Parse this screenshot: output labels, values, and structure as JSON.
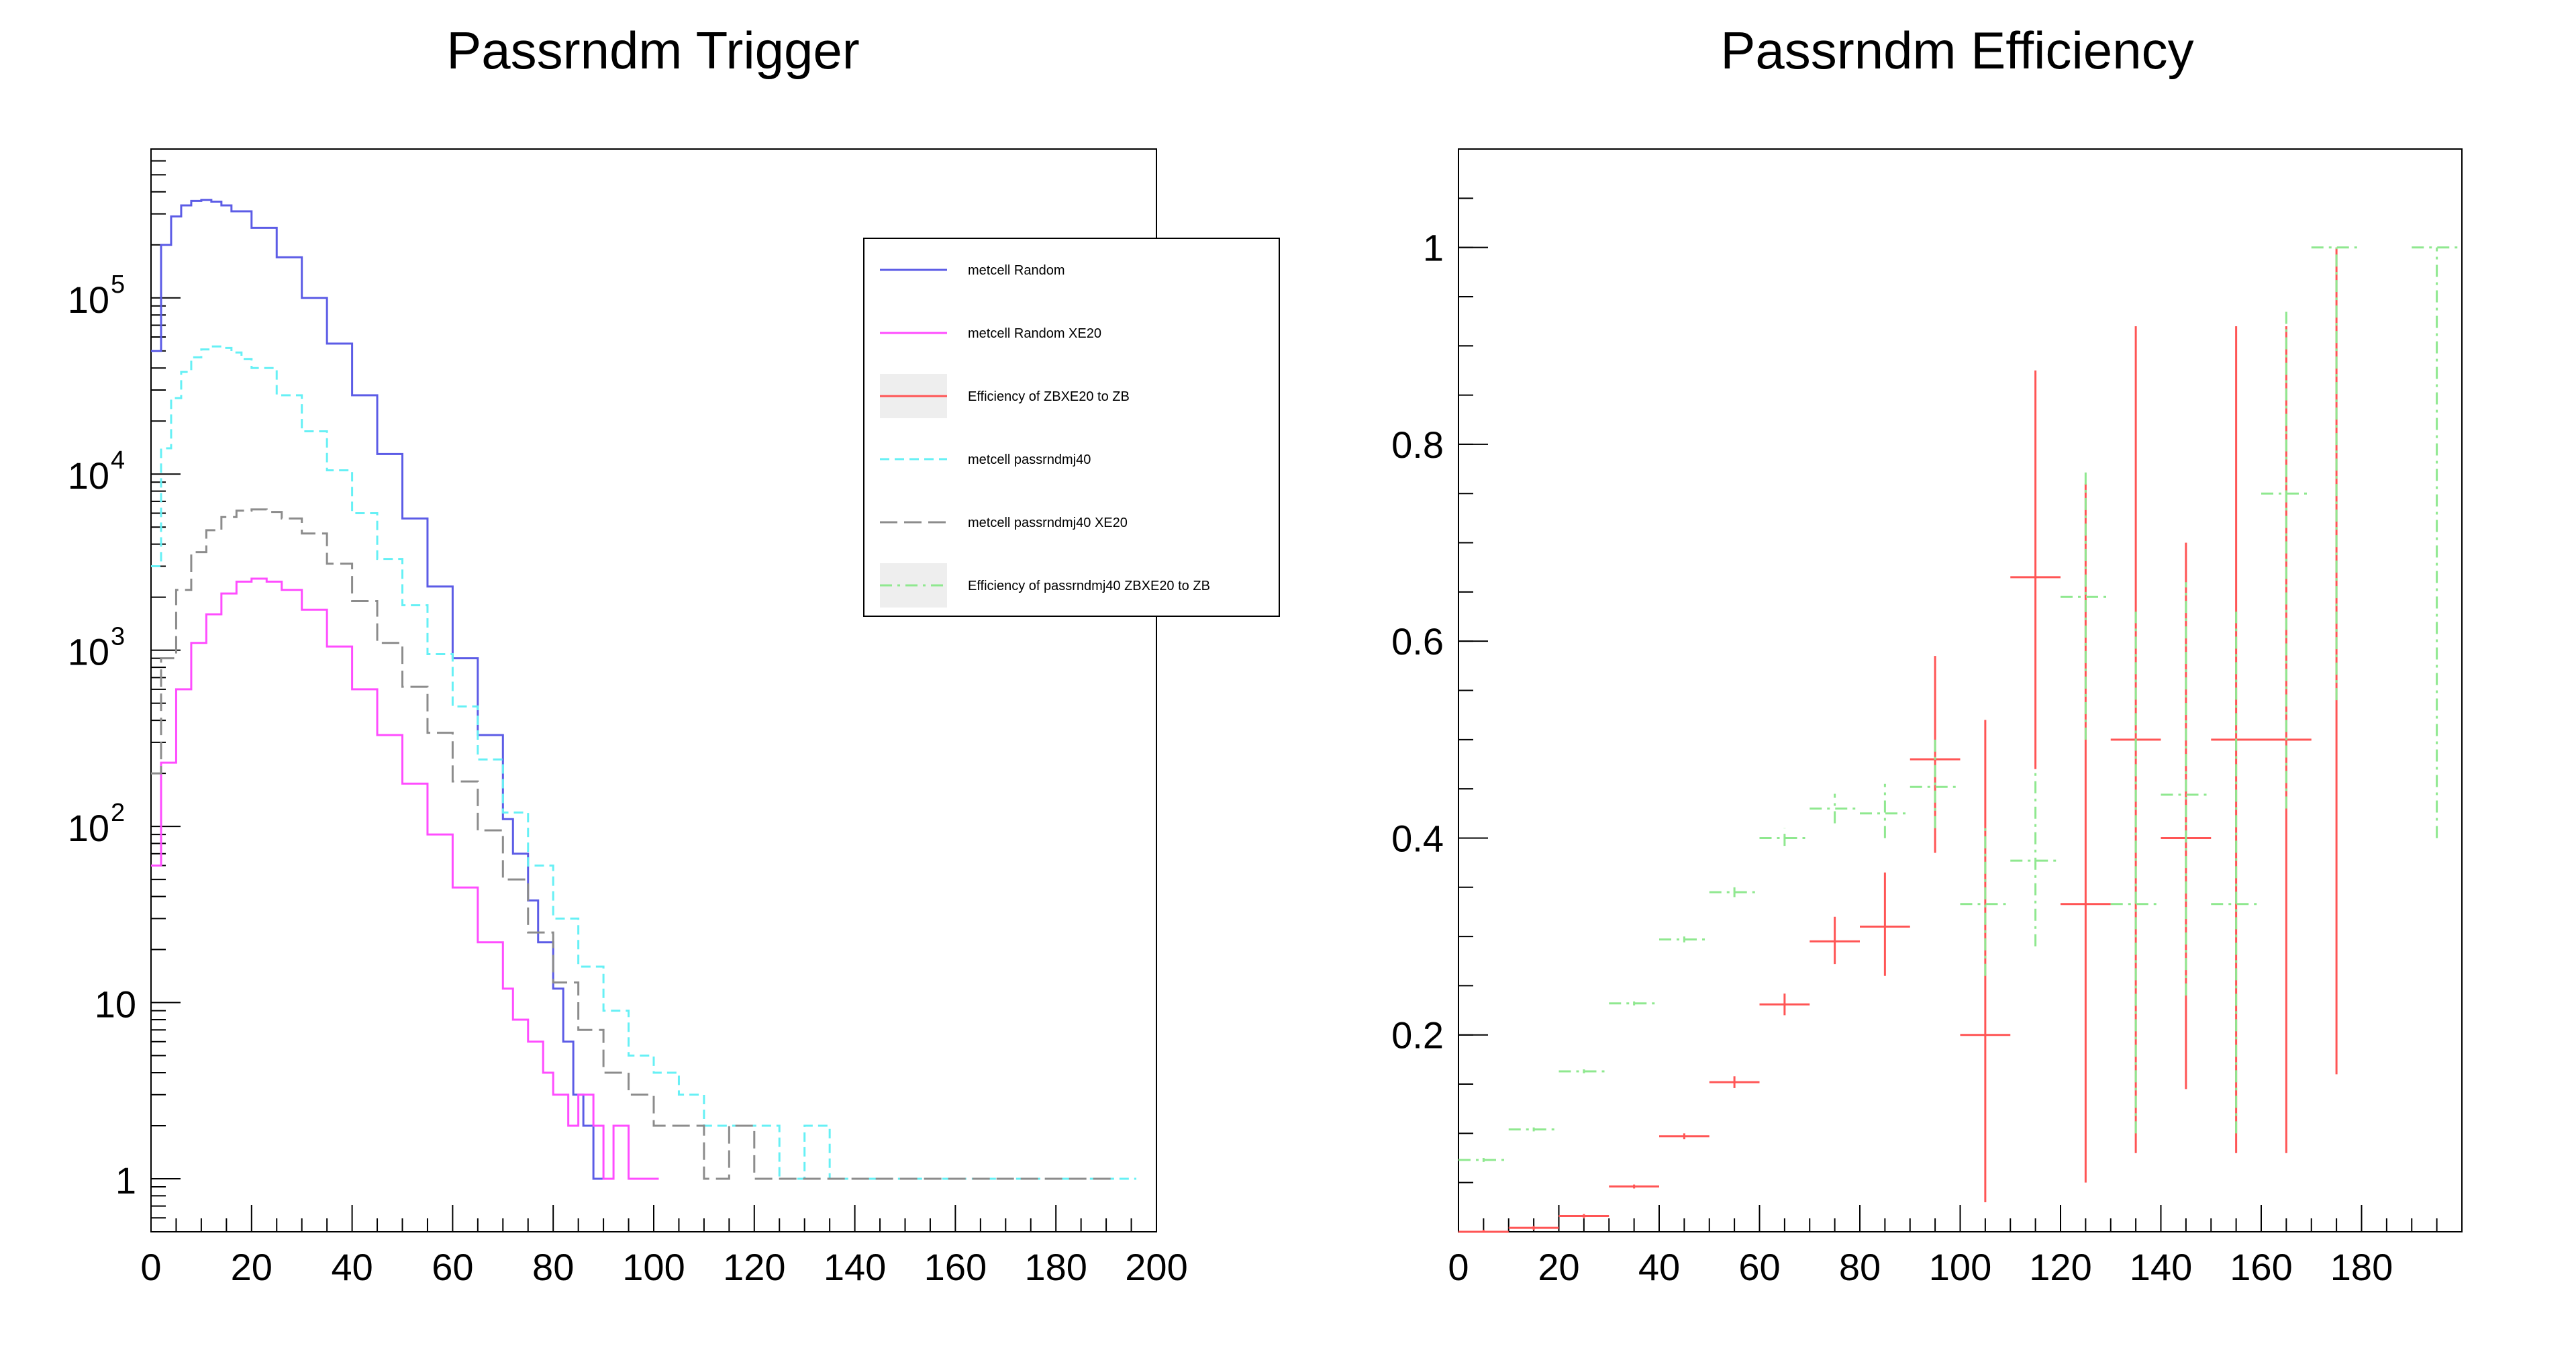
{
  "colors": {
    "random": "#5c5ce6",
    "random_xe20": "#ff4dff",
    "eff_zb": "#ff5555",
    "passrndmj40": "#66f0f5",
    "passrndmj40_xe20": "#8c8c8c",
    "eff_passrndmj40": "#8fe88f"
  },
  "chart_data": [
    {
      "type": "line",
      "title": "Passrndm Trigger",
      "y_scale": "log",
      "xlim": [
        0,
        200
      ],
      "ylim": [
        0.5,
        700000
      ],
      "x_ticks": [
        "0",
        "20",
        "40",
        "60",
        "80",
        "100",
        "120",
        "140",
        "160",
        "180",
        "200"
      ],
      "y_tick_labels": [
        {
          "value": 1,
          "base": "1",
          "exp": ""
        },
        {
          "value": 10,
          "base": "10",
          "exp": ""
        },
        {
          "value": 100,
          "base": "10",
          "exp": "2"
        },
        {
          "value": 1000,
          "base": "10",
          "exp": "3"
        },
        {
          "value": 10000,
          "base": "10",
          "exp": "4"
        },
        {
          "value": 100000,
          "base": "10",
          "exp": "5"
        }
      ],
      "legend": {
        "position": "top-right",
        "entries": [
          {
            "label": "metcell Random",
            "color_key": "random",
            "style": "solid",
            "fill": false
          },
          {
            "label": "metcell Random XE20",
            "color_key": "random_xe20",
            "style": "solid",
            "fill": false
          },
          {
            "label": "Efficiency of ZBXE20 to ZB",
            "color_key": "eff_zb",
            "style": "solid",
            "fill": true
          },
          {
            "label": "metcell passrndmj40",
            "color_key": "passrndmj40",
            "style": "dashed",
            "fill": false
          },
          {
            "label": "metcell passrndmj40 XE20",
            "color_key": "passrndmj40_xe20",
            "style": "longdash",
            "fill": false
          },
          {
            "label": "Efficiency of passrndmj40 ZBXE20 to ZB",
            "color_key": "eff_passrndmj40",
            "style": "dashdot",
            "fill": true
          }
        ]
      },
      "series": [
        {
          "name": "metcell Random",
          "color_key": "random",
          "style": "solid",
          "x": [
            0,
            2,
            4,
            6,
            8,
            10,
            12,
            14,
            16,
            20,
            25,
            30,
            35,
            40,
            45,
            50,
            55,
            60,
            65,
            70,
            72,
            75,
            77,
            80,
            82,
            84,
            86,
            88,
            90
          ],
          "y": [
            50000,
            200000,
            290000,
            335000,
            355000,
            360000,
            352000,
            335000,
            310000,
            250000,
            170000,
            100000,
            55000,
            28000,
            13000,
            5600,
            2300,
            900,
            330,
            110,
            70,
            38,
            22,
            12,
            6,
            3,
            2,
            1,
            1
          ]
        },
        {
          "name": "metcell Random XE20",
          "color_key": "random_xe20",
          "style": "solid",
          "x": [
            0,
            2,
            5,
            8,
            11,
            14,
            17,
            20,
            23,
            26,
            30,
            35,
            40,
            45,
            50,
            55,
            60,
            65,
            70,
            72,
            75,
            78,
            80,
            83,
            85,
            88,
            90,
            92,
            95,
            98,
            100
          ],
          "y": [
            60,
            230,
            600,
            1100,
            1600,
            2100,
            2450,
            2550,
            2450,
            2200,
            1700,
            1050,
            600,
            330,
            175,
            90,
            45,
            22,
            12,
            8,
            6,
            4,
            3,
            2,
            3,
            2,
            1,
            2,
            1,
            1,
            1
          ]
        },
        {
          "name": "metcell passrndmj40",
          "color_key": "passrndmj40",
          "style": "dashed",
          "x": [
            0,
            2,
            4,
            6,
            8,
            10,
            12,
            14,
            16,
            18,
            20,
            25,
            30,
            35,
            40,
            45,
            50,
            55,
            60,
            65,
            70,
            75,
            80,
            85,
            90,
            95,
            100,
            105,
            110,
            115,
            120,
            125,
            130,
            135,
            140,
            145,
            150,
            155,
            160,
            165,
            170,
            175,
            180,
            185,
            190,
            195
          ],
          "y": [
            3000,
            14000,
            27000,
            38000,
            46000,
            51000,
            53000,
            52000,
            49000,
            45000,
            40000,
            28000,
            17500,
            10500,
            6000,
            3300,
            1800,
            950,
            480,
            240,
            120,
            60,
            30,
            16,
            9,
            5,
            4,
            3,
            2,
            2,
            2,
            1,
            2,
            1,
            1,
            1,
            1,
            1,
            1,
            1,
            1,
            1,
            1,
            1,
            1,
            1
          ]
        },
        {
          "name": "metcell passrndmj40 XE20",
          "color_key": "passrndmj40_xe20",
          "style": "longdash",
          "x": [
            0,
            2,
            5,
            8,
            11,
            14,
            17,
            20,
            23,
            26,
            30,
            35,
            40,
            45,
            50,
            55,
            60,
            65,
            70,
            75,
            80,
            85,
            90,
            95,
            100,
            105,
            110,
            115,
            120,
            125,
            130,
            135,
            140,
            145,
            150,
            160,
            170,
            180,
            190
          ],
          "y": [
            200,
            900,
            2200,
            3600,
            4800,
            5700,
            6200,
            6300,
            6100,
            5600,
            4600,
            3100,
            1900,
            1100,
            620,
            340,
            180,
            95,
            50,
            25,
            13,
            7,
            4,
            3,
            2,
            2,
            1,
            2,
            1,
            1,
            1,
            1,
            1,
            1,
            1,
            1,
            1,
            1,
            1
          ]
        }
      ]
    },
    {
      "type": "scatter",
      "title": "Passrndm Efficiency",
      "xlim": [
        0,
        200
      ],
      "ylim": [
        0,
        1.1
      ],
      "x_ticks": [
        "0",
        "20",
        "40",
        "60",
        "80",
        "100",
        "120",
        "140",
        "160",
        "180"
      ],
      "y_ticks": [
        "0.2",
        "0.4",
        "0.6",
        "0.8",
        "1"
      ],
      "series": [
        {
          "name": "Efficiency of ZBXE20 to ZB",
          "color_key": "eff_zb",
          "style": "solid",
          "points": [
            {
              "x": 5,
              "y": 0.0,
              "xerr": 5,
              "ylo": 0.0,
              "yhi": 0.002
            },
            {
              "x": 15,
              "y": 0.004,
              "xerr": 5,
              "ylo": 0.002,
              "yhi": 0.006
            },
            {
              "x": 25,
              "y": 0.016,
              "xerr": 5,
              "ylo": 0.014,
              "yhi": 0.018
            },
            {
              "x": 35,
              "y": 0.046,
              "xerr": 5,
              "ylo": 0.044,
              "yhi": 0.048
            },
            {
              "x": 45,
              "y": 0.097,
              "xerr": 5,
              "ylo": 0.094,
              "yhi": 0.1
            },
            {
              "x": 55,
              "y": 0.152,
              "xerr": 5,
              "ylo": 0.146,
              "yhi": 0.158
            },
            {
              "x": 65,
              "y": 0.231,
              "xerr": 5,
              "ylo": 0.22,
              "yhi": 0.242
            },
            {
              "x": 75,
              "y": 0.295,
              "xerr": 5,
              "ylo": 0.272,
              "yhi": 0.32
            },
            {
              "x": 85,
              "y": 0.31,
              "xerr": 5,
              "ylo": 0.26,
              "yhi": 0.365
            },
            {
              "x": 95,
              "y": 0.48,
              "xerr": 5,
              "ylo": 0.385,
              "yhi": 0.585
            },
            {
              "x": 105,
              "y": 0.2,
              "xerr": 5,
              "ylo": 0.03,
              "yhi": 0.52
            },
            {
              "x": 115,
              "y": 0.665,
              "xerr": 5,
              "ylo": 0.47,
              "yhi": 0.875
            },
            {
              "x": 125,
              "y": 0.333,
              "xerr": 5,
              "ylo": 0.05,
              "yhi": 0.76
            },
            {
              "x": 135,
              "y": 0.5,
              "xerr": 5,
              "ylo": 0.08,
              "yhi": 0.92
            },
            {
              "x": 145,
              "y": 0.4,
              "xerr": 5,
              "ylo": 0.145,
              "yhi": 0.7
            },
            {
              "x": 155,
              "y": 0.5,
              "xerr": 5,
              "ylo": 0.08,
              "yhi": 0.92
            },
            {
              "x": 165,
              "y": 0.5,
              "xerr": 5,
              "ylo": 0.08,
              "yhi": 0.92
            },
            {
              "x": 175,
              "y": 1.0,
              "xerr": 0,
              "ylo": 0.16,
              "yhi": 1.0
            }
          ]
        },
        {
          "name": "Efficiency of passrndmj40 ZBXE20 to ZB",
          "color_key": "eff_passrndmj40",
          "style": "dashdot",
          "points": [
            {
              "x": 5,
              "y": 0.073,
              "xerr": 5,
              "ylo": 0.071,
              "yhi": 0.075
            },
            {
              "x": 15,
              "y": 0.104,
              "xerr": 5,
              "ylo": 0.102,
              "yhi": 0.106
            },
            {
              "x": 25,
              "y": 0.163,
              "xerr": 5,
              "ylo": 0.161,
              "yhi": 0.165
            },
            {
              "x": 35,
              "y": 0.232,
              "xerr": 5,
              "ylo": 0.23,
              "yhi": 0.234
            },
            {
              "x": 45,
              "y": 0.297,
              "xerr": 5,
              "ylo": 0.294,
              "yhi": 0.3
            },
            {
              "x": 55,
              "y": 0.345,
              "xerr": 5,
              "ylo": 0.34,
              "yhi": 0.35
            },
            {
              "x": 65,
              "y": 0.4,
              "xerr": 5,
              "ylo": 0.392,
              "yhi": 0.41
            },
            {
              "x": 75,
              "y": 0.43,
              "xerr": 5,
              "ylo": 0.415,
              "yhi": 0.445
            },
            {
              "x": 85,
              "y": 0.425,
              "xerr": 5,
              "ylo": 0.4,
              "yhi": 0.455
            },
            {
              "x": 95,
              "y": 0.452,
              "xerr": 5,
              "ylo": 0.41,
              "yhi": 0.5
            },
            {
              "x": 105,
              "y": 0.333,
              "xerr": 5,
              "ylo": 0.26,
              "yhi": 0.41
            },
            {
              "x": 115,
              "y": 0.377,
              "xerr": 5,
              "ylo": 0.29,
              "yhi": 0.47
            },
            {
              "x": 125,
              "y": 0.645,
              "xerr": 5,
              "ylo": 0.5,
              "yhi": 0.775
            },
            {
              "x": 135,
              "y": 0.333,
              "xerr": 5,
              "ylo": 0.1,
              "yhi": 0.63
            },
            {
              "x": 145,
              "y": 0.444,
              "xerr": 5,
              "ylo": 0.24,
              "yhi": 0.66
            },
            {
              "x": 155,
              "y": 0.333,
              "xerr": 5,
              "ylo": 0.1,
              "yhi": 0.63
            },
            {
              "x": 165,
              "y": 0.75,
              "xerr": 5,
              "ylo": 0.43,
              "yhi": 0.94
            },
            {
              "x": 175,
              "y": 1.0,
              "xerr": 5,
              "ylo": 0.54,
              "yhi": 1.0
            },
            {
              "x": 195,
              "y": 1.0,
              "xerr": 5,
              "ylo": 0.4,
              "yhi": 1.0
            }
          ]
        }
      ]
    }
  ]
}
